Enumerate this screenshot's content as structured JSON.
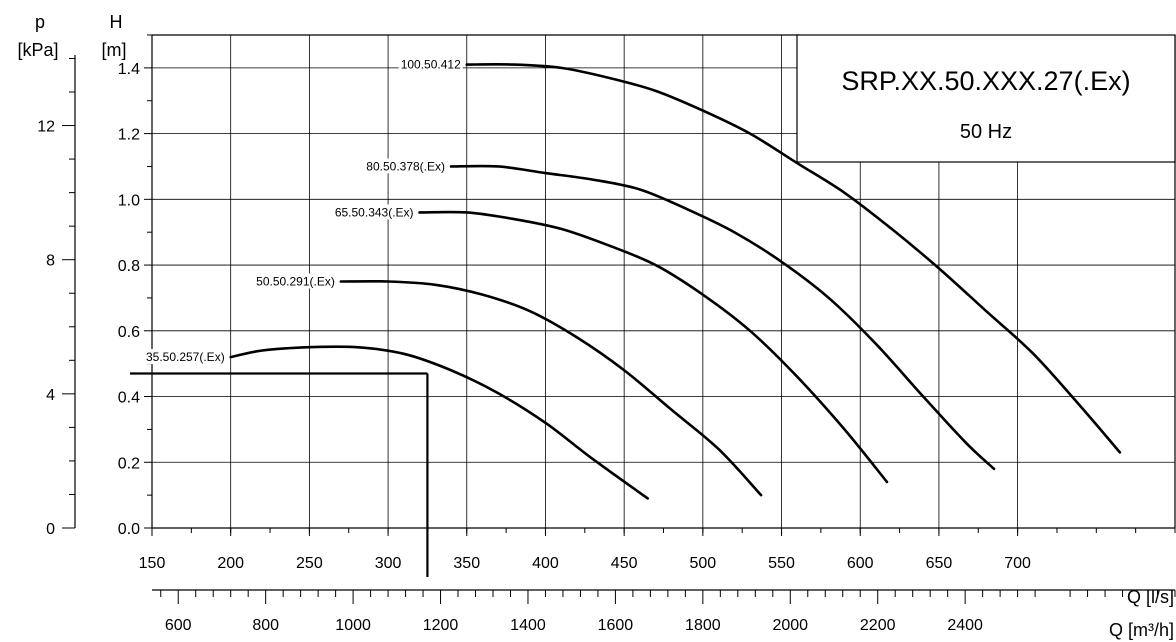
{
  "chart_data": {
    "type": "line",
    "title": "SRP.XX.50.XXX.27(.Ex)",
    "subtitle": "50 Hz",
    "xlabel": "Q [l/s]",
    "x2label": "Q [m³/h]",
    "ylabel": "H",
    "ylabel_unit": "[m]",
    "y2label": "p",
    "y2label_unit": "[kPa]",
    "xlim": [
      150,
      800
    ],
    "ylim": [
      0,
      1.5
    ],
    "x2lim": [
      540,
      2880
    ],
    "y2lim": [
      0,
      14.7
    ],
    "grid": true,
    "xticks": [
      150,
      200,
      250,
      300,
      350,
      400,
      450,
      500,
      550,
      600,
      650,
      700
    ],
    "xtick_labels": [
      "150",
      "200",
      "250",
      "300",
      "350",
      "400",
      "450",
      "500",
      "550",
      "600",
      "650",
      "700"
    ],
    "yticks": [
      0.0,
      0.2,
      0.4,
      0.6,
      0.8,
      1.0,
      1.2,
      1.4
    ],
    "ytick_labels": [
      "0.0",
      "0.2",
      "0.4",
      "0.6",
      "0.8",
      "1.0",
      "1.2",
      "1.4"
    ],
    "x2ticks": [
      600,
      800,
      1000,
      1200,
      1400,
      1600,
      1800,
      2000,
      2200,
      2400
    ],
    "x2tick_labels": [
      "600",
      "800",
      "1000",
      "1200",
      "1400",
      "1600",
      "1800",
      "2000",
      "2200",
      "2400"
    ],
    "y2ticks": [
      0,
      4,
      8,
      12
    ],
    "y2tick_labels": [
      "0",
      "4",
      "8",
      "12"
    ],
    "series": [
      {
        "name": "35.50.257(.Ex)",
        "x": [
          200,
          220,
          250,
          280,
          310,
          340,
          370,
          400,
          430,
          465
        ],
        "y": [
          0.52,
          0.54,
          0.55,
          0.55,
          0.53,
          0.48,
          0.41,
          0.32,
          0.21,
          0.09
        ]
      },
      {
        "name": "50.50.291(.Ex)",
        "x": [
          270,
          300,
          330,
          360,
          390,
          420,
          450,
          480,
          510,
          537
        ],
        "y": [
          0.75,
          0.75,
          0.74,
          0.71,
          0.66,
          0.58,
          0.48,
          0.36,
          0.24,
          0.1
        ]
      },
      {
        "name": "65.50.343(.Ex)",
        "x": [
          320,
          350,
          380,
          410,
          440,
          470,
          500,
          530,
          560,
          590,
          617
        ],
        "y": [
          0.96,
          0.96,
          0.94,
          0.91,
          0.86,
          0.8,
          0.71,
          0.6,
          0.46,
          0.3,
          0.14
        ]
      },
      {
        "name": "80.50.378(.Ex)",
        "x": [
          340,
          370,
          400,
          430,
          460,
          490,
          520,
          550,
          580,
          610,
          640,
          667,
          685
        ],
        "y": [
          1.1,
          1.1,
          1.08,
          1.06,
          1.03,
          0.97,
          0.9,
          0.81,
          0.7,
          0.56,
          0.4,
          0.26,
          0.18
        ]
      },
      {
        "name": "100.50.412",
        "x": [
          350,
          380,
          410,
          440,
          470,
          500,
          530,
          560,
          590,
          620,
          650,
          680,
          710,
          740,
          765
        ],
        "y": [
          1.41,
          1.41,
          1.4,
          1.37,
          1.33,
          1.27,
          1.2,
          1.11,
          1.02,
          0.91,
          0.79,
          0.66,
          0.53,
          0.37,
          0.23
        ]
      }
    ],
    "series_labels": [
      "35.50.257(.Ex)",
      "50.50.291(.Ex)",
      "65.50.343(.Ex)",
      "80.50.378(.Ex)",
      "100.50.412"
    ],
    "operating_point": {
      "x": 325,
      "y": 0.47
    }
  }
}
